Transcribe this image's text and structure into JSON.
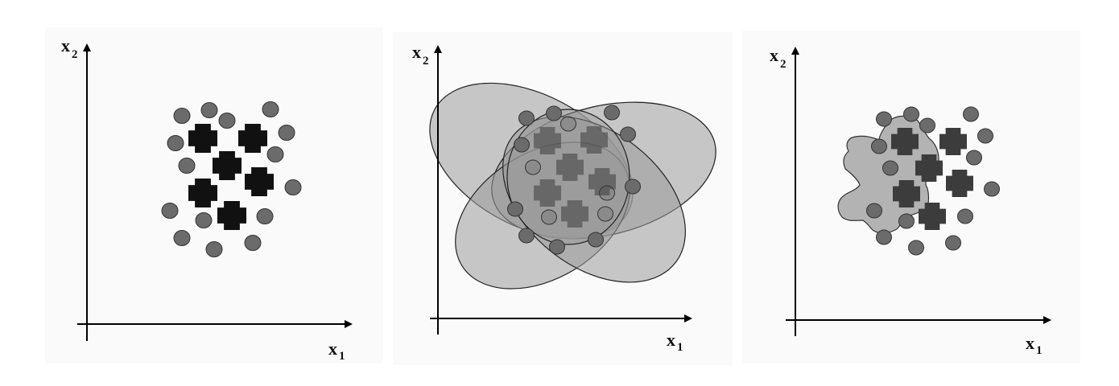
{
  "panels": [
    {
      "x_axis_label": "x",
      "x_axis_subscript": "1",
      "y_axis_label": "x",
      "y_axis_subscript": "2",
      "boundary": "none"
    },
    {
      "x_axis_label": "x",
      "x_axis_subscript": "1",
      "y_axis_label": "x",
      "y_axis_subscript": "2",
      "boundary": "overlapping-ellipses"
    },
    {
      "x_axis_label": "x",
      "x_axis_subscript": "1",
      "y_axis_label": "x",
      "y_axis_subscript": "2",
      "boundary": "tight-blob"
    }
  ],
  "legend": {
    "circle_class_color": "#6b6b6b",
    "cross_class_color_panel1": "#111111",
    "cross_class_color_panels23": "#3c3c3c",
    "region_fill": "#9a9a9a"
  }
}
